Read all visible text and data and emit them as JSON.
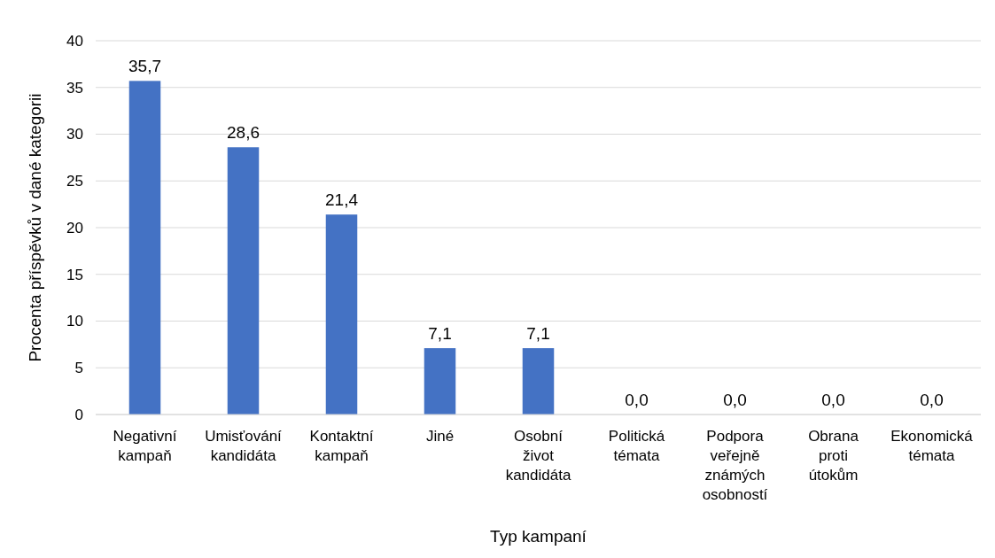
{
  "chart_data": {
    "type": "bar",
    "categories": [
      "Negativní kampaň",
      "Umisťování kandidáta",
      "Kontaktní kampaň",
      "Jiné",
      "Osobní život kandidáta",
      "Politická témata",
      "Podpora veřejně známých osobností",
      "Obrana proti útokům",
      "Ekonomická témata"
    ],
    "values": [
      35.7,
      28.6,
      21.4,
      7.1,
      7.1,
      0,
      0,
      0,
      0
    ],
    "value_labels": [
      "35,7",
      "28,6",
      "21,4",
      "7,1",
      "7,1",
      "0,0",
      "0,0",
      "0,0",
      "0,0"
    ],
    "color": "#4472c4",
    "xlabel": "Typ kampaní",
    "ylabel": "Procenta příspěvků v dané kategorii",
    "ylim": [
      0,
      40
    ],
    "yticks": [
      0,
      5,
      10,
      15,
      20,
      25,
      30,
      35,
      40
    ],
    "grid": "y"
  }
}
